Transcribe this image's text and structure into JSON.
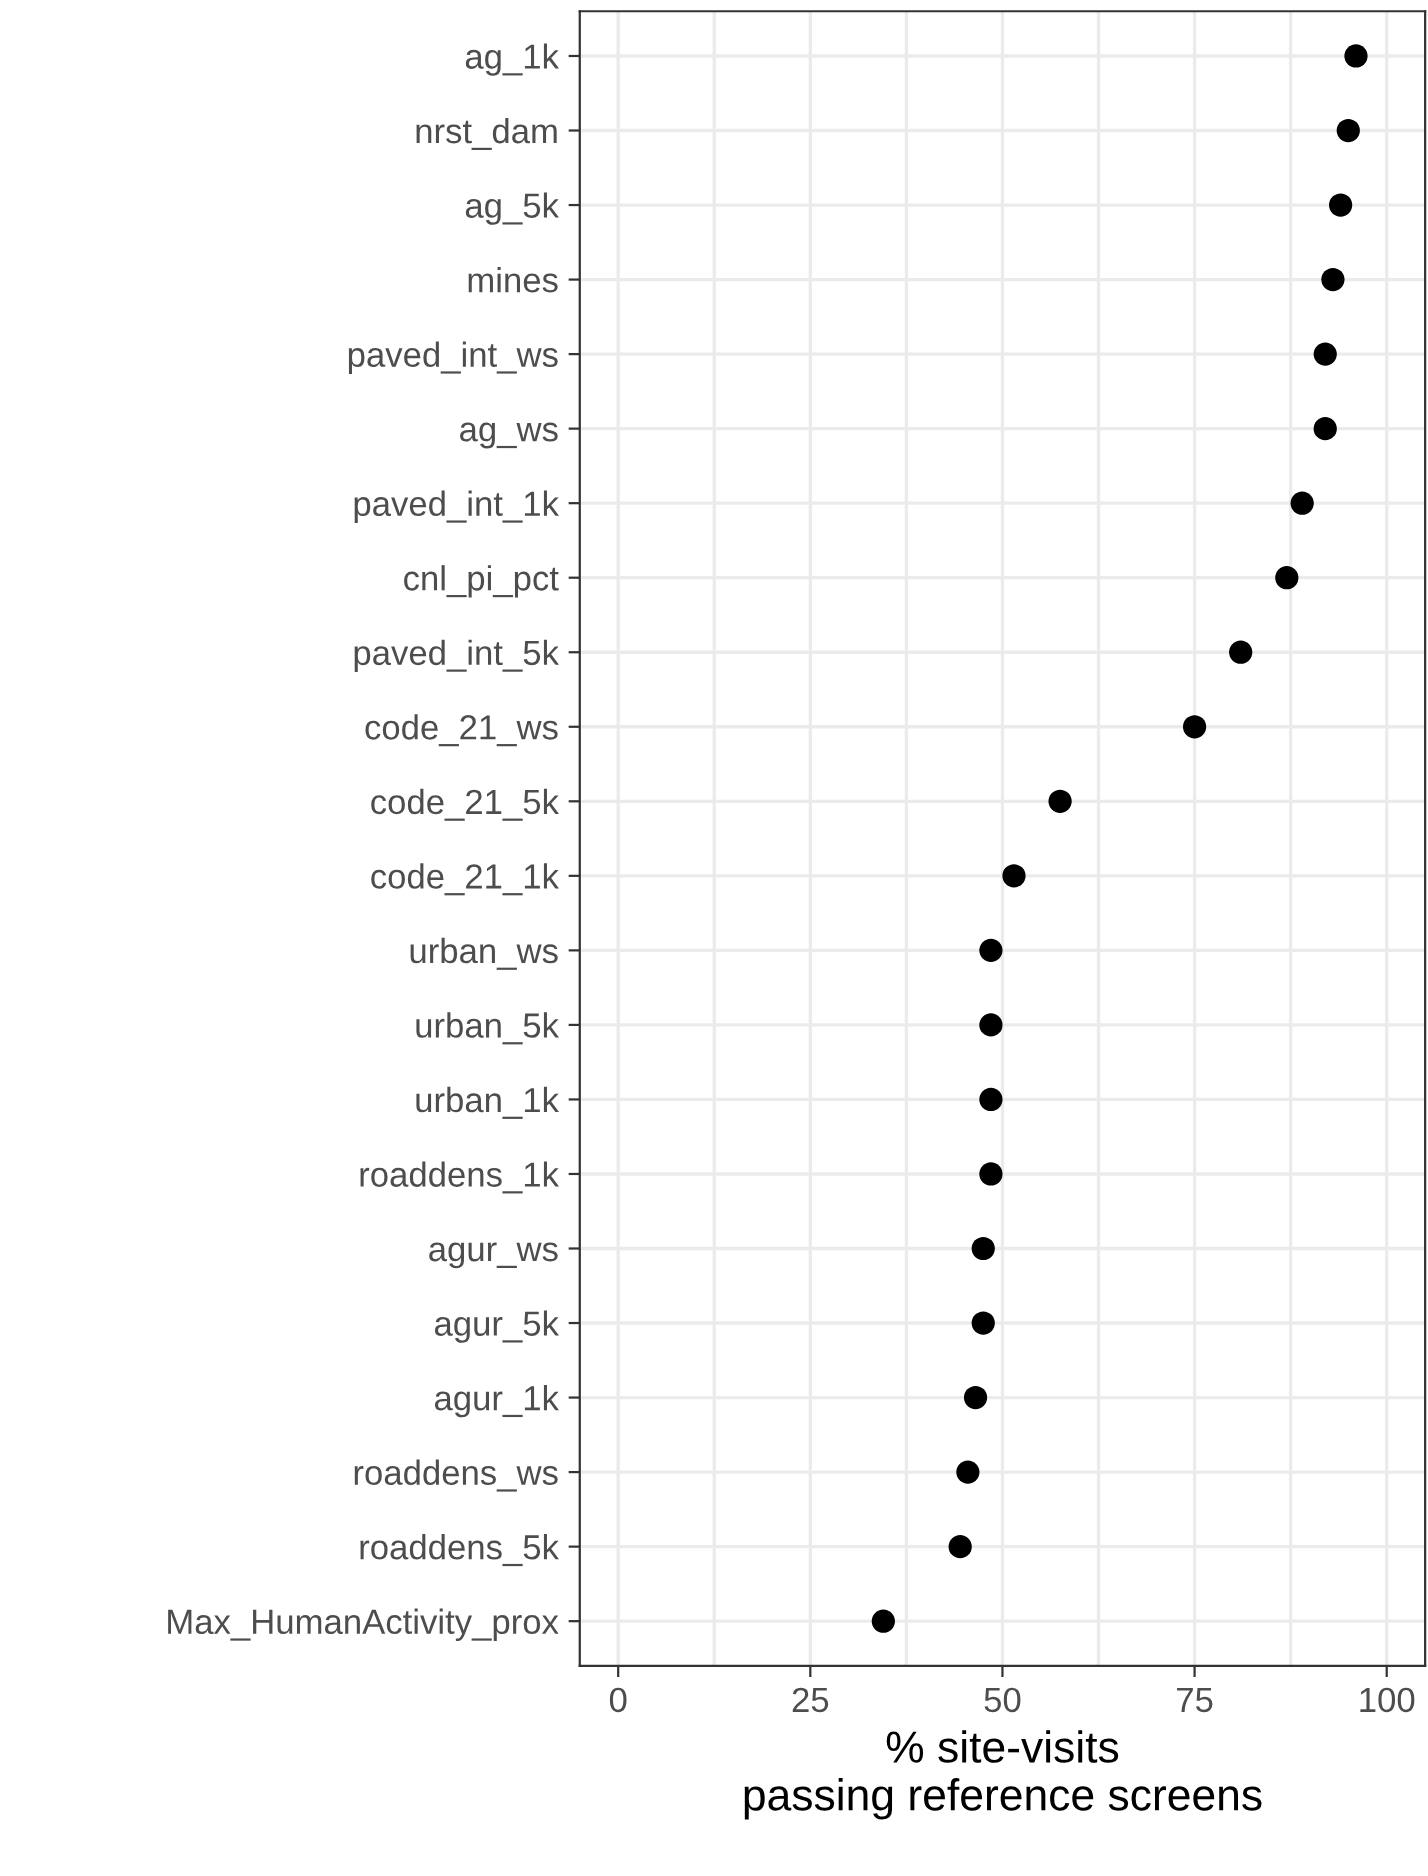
{
  "chart_data": {
    "type": "scatter",
    "orientation": "horizontal",
    "categories": [
      "ag_1k",
      "nrst_dam",
      "ag_5k",
      "mines",
      "paved_int_ws",
      "ag_ws",
      "paved_int_1k",
      "cnl_pi_pct",
      "paved_int_5k",
      "code_21_ws",
      "code_21_5k",
      "code_21_1k",
      "urban_ws",
      "urban_5k",
      "urban_1k",
      "roaddens_1k",
      "agur_ws",
      "agur_5k",
      "agur_1k",
      "roaddens_ws",
      "roaddens_5k",
      "Max_HumanActivity_prox"
    ],
    "series": [
      {
        "color": "#000000",
        "values": [
          96,
          95,
          94,
          93,
          92,
          92,
          89,
          87,
          81,
          75,
          57.5,
          51.5,
          48.5,
          48.5,
          48.5,
          48.5,
          47.5,
          47.5,
          46.5,
          45.5,
          44.5,
          34.5
        ]
      }
    ],
    "xlabel": "% site-visits\npassing reference screens",
    "xlim": [
      -5,
      105
    ],
    "xticks": [
      0,
      25,
      50,
      75,
      100
    ],
    "grid": true,
    "marker": "circle"
  }
}
